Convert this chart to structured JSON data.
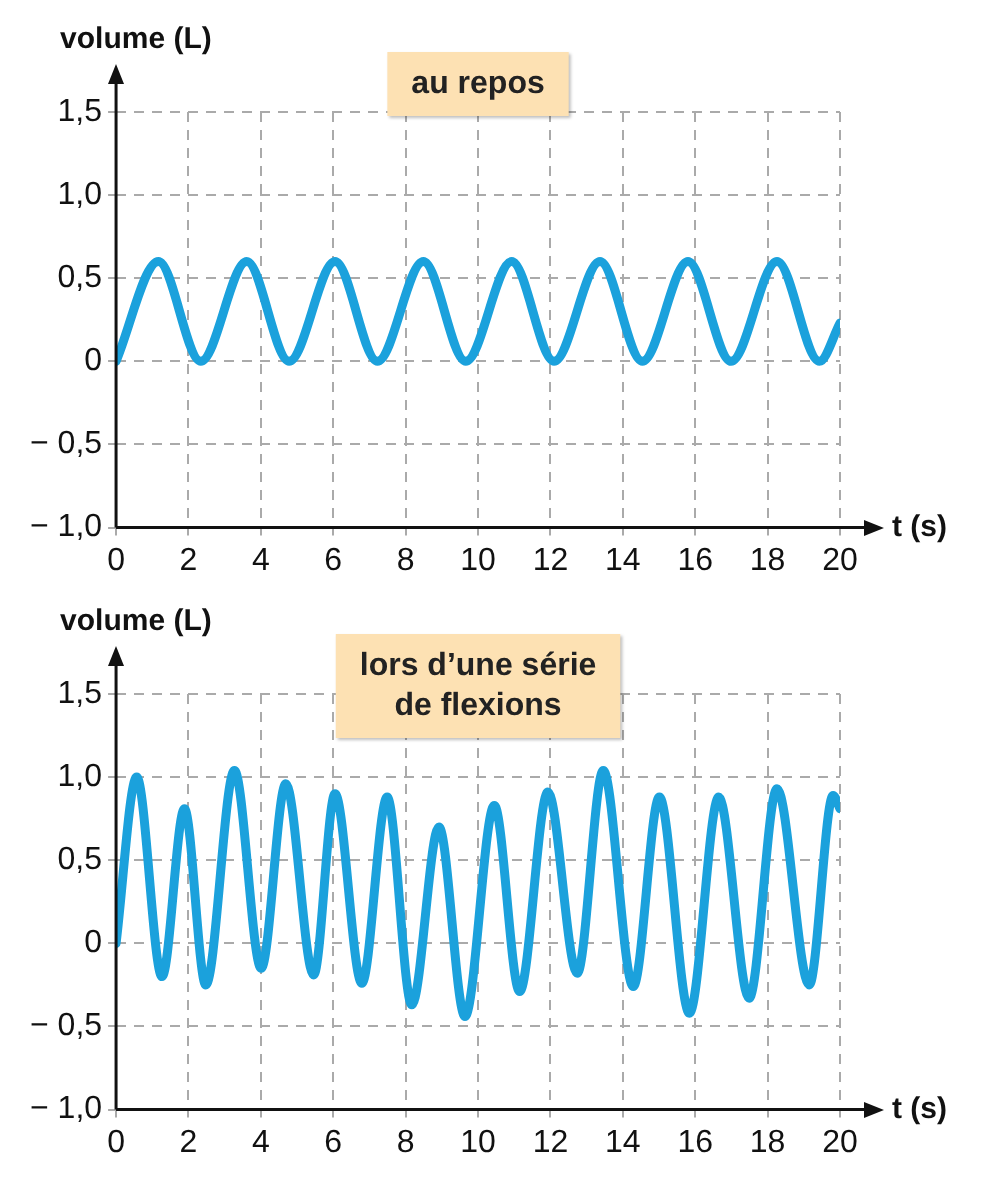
{
  "chart_data": [
    {
      "type": "line",
      "title": "au repos",
      "xlabel": "t (s)",
      "ylabel": "volume (L)",
      "marker": "none",
      "grid": true,
      "xlim": [
        0,
        20
      ],
      "ylim": [
        -1,
        1.5
      ],
      "xticks": [
        0,
        2,
        4,
        6,
        8,
        10,
        12,
        14,
        16,
        18,
        20
      ],
      "yticks": [
        {
          "value": -1,
          "label": "− 1,0"
        },
        {
          "value": -0.5,
          "label": "− 0,5"
        },
        0,
        {
          "value": 0.5,
          "label": "0,5"
        },
        {
          "value": 1,
          "label": "1,0"
        },
        {
          "value": 1.5,
          "label": "1,5"
        }
      ],
      "series": [
        {
          "color": "#1ba1dc",
          "x": [
            0,
            1.17,
            2.34,
            3.61,
            4.78,
            6.05,
            7.22,
            8.49,
            9.66,
            10.93,
            12.1,
            13.37,
            14.54,
            15.8,
            16.99,
            18.26,
            19.43,
            20
          ],
          "values": [
            0,
            0.6,
            0,
            0.6,
            0,
            0.6,
            0,
            0.6,
            0,
            0.6,
            0,
            0.6,
            0,
            0.6,
            0,
            0.6,
            0,
            0.23
          ]
        }
      ]
    },
    {
      "type": "line",
      "title": "lors d’une série de flexions",
      "xlabel": "t (s)",
      "ylabel": "volume (L)",
      "marker": "none",
      "grid": true,
      "xlim": [
        0,
        20
      ],
      "ylim": [
        -1,
        1.5
      ],
      "xticks": [
        0,
        2,
        4,
        6,
        8,
        10,
        12,
        14,
        16,
        18,
        20
      ],
      "yticks": [
        {
          "value": -1,
          "label": "− 1,0"
        },
        {
          "value": -0.5,
          "label": "− 0,5"
        },
        0,
        {
          "value": 0.5,
          "label": "0,5"
        },
        {
          "value": 1,
          "label": "1,0"
        },
        {
          "value": 1.5,
          "label": "1,5"
        }
      ],
      "series": [
        {
          "color": "#1ba1dc",
          "x": [
            0,
            0.57,
            1.27,
            1.89,
            2.48,
            3.27,
            4.01,
            4.69,
            5.46,
            6.05,
            6.79,
            7.49,
            8.17,
            8.92,
            9.64,
            10.45,
            11.15,
            11.93,
            12.74,
            13.46,
            14.29,
            15.01,
            15.84,
            16.65,
            17.49,
            18.26,
            19.15,
            19.81,
            20
          ],
          "values": [
            0,
            1.0,
            -0.2,
            0.81,
            -0.25,
            1.04,
            -0.15,
            0.96,
            -0.19,
            0.9,
            -0.24,
            0.88,
            -0.37,
            0.7,
            -0.44,
            0.83,
            -0.29,
            0.91,
            -0.18,
            1.04,
            -0.26,
            0.88,
            -0.42,
            0.88,
            -0.33,
            0.93,
            -0.25,
            0.89,
            0.81
          ]
        }
      ]
    }
  ]
}
